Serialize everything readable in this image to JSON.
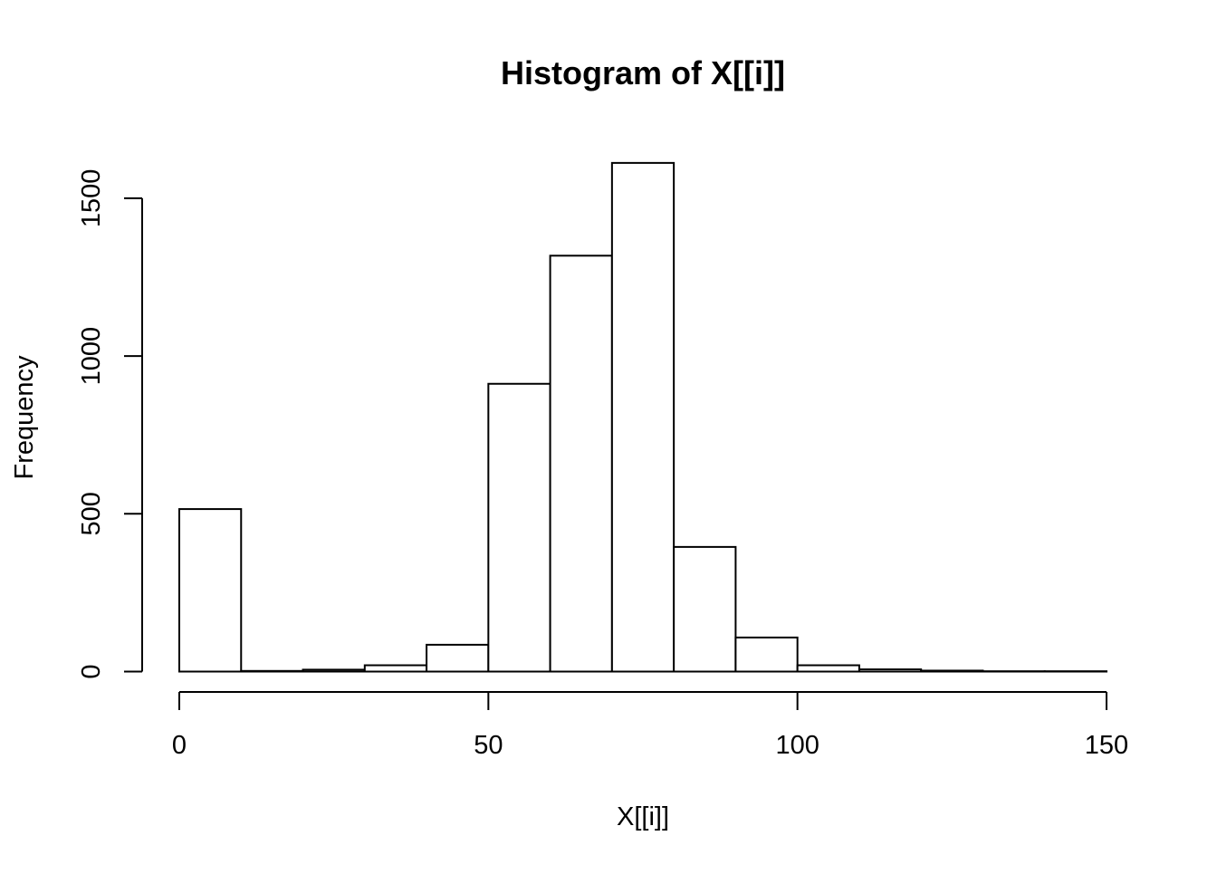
{
  "chart_data": {
    "type": "bar",
    "title": "Histogram of X[[i]]",
    "xlabel": "X[[i]]",
    "ylabel": "Frequency",
    "bin_edges": [
      0,
      10,
      20,
      30,
      40,
      50,
      60,
      70,
      80,
      90,
      100,
      110,
      120,
      130,
      140,
      150
    ],
    "values": [
      515,
      2,
      6,
      20,
      85,
      912,
      1318,
      1612,
      395,
      108,
      20,
      7,
      3,
      1,
      1
    ],
    "xlim": [
      0,
      150
    ],
    "ylim": [
      0,
      1612
    ],
    "x_ticks": [
      0,
      50,
      100,
      150
    ],
    "y_ticks": [
      0,
      500,
      1000,
      1500
    ],
    "x_tick_labels": [
      "0",
      "50",
      "100",
      "150"
    ],
    "y_tick_labels": [
      "0",
      "500",
      "1000",
      "1500"
    ],
    "grid": false,
    "legend": "none",
    "colors": {
      "bar_fill": "#ffffff",
      "bar_stroke": "#000000",
      "axis": "#000000",
      "background": "#ffffff"
    }
  }
}
